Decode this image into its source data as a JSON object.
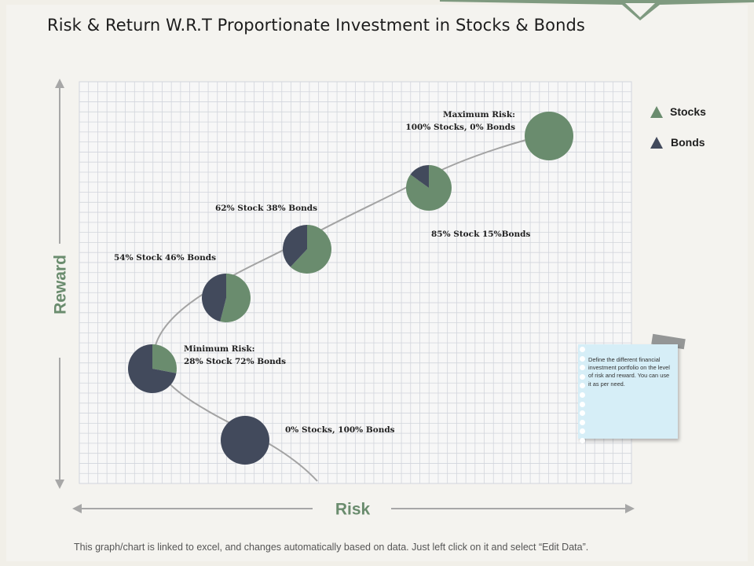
{
  "title": "Risk & Return W.R.T Proportionate Investment in Stocks & Bonds",
  "footer": "This graph/chart is linked to excel, and changes automatically based on data. Just left click on it and select “Edit Data”.",
  "note": {
    "text": "Define the different financial investment portfolio on the level of risk and reward.  You can use it as per need.",
    "hole_count": 11
  },
  "colors": {
    "stocks": "#6a8c6e",
    "bonds": "#424a5c",
    "axis_label": "#6a8c6e",
    "grid": "#d2d5dc",
    "curve": "#a3a3a3"
  },
  "chart_data": {
    "type": "scatter",
    "xlabel": "Risk",
    "ylabel": "Reward",
    "grid": true,
    "legend_position": "top-right",
    "legend": [
      {
        "name": "Stocks",
        "color": "#6a8c6e",
        "icon": "triangle-icon"
      },
      {
        "name": "Bonds",
        "color": "#424a5c",
        "icon": "triangle-icon"
      }
    ],
    "series": [
      {
        "label": [
          "0% Stocks, 100% Bonds"
        ],
        "stocks": 0,
        "bonds": 100
      },
      {
        "label": [
          "Minimum Risk:",
          "28% Stock 72% Bonds"
        ],
        "stocks": 28,
        "bonds": 72
      },
      {
        "label": [
          "54% Stock 46% Bonds"
        ],
        "stocks": 54,
        "bonds": 46
      },
      {
        "label": [
          "62% Stock 38% Bonds"
        ],
        "stocks": 62,
        "bonds": 38
      },
      {
        "label": [
          "85% Stock 15%Bonds"
        ],
        "stocks": 85,
        "bonds": 15
      },
      {
        "label": [
          "Maximum Risk:",
          "100% Stocks, 0% Bonds"
        ],
        "stocks": 100,
        "bonds": 0
      }
    ]
  }
}
